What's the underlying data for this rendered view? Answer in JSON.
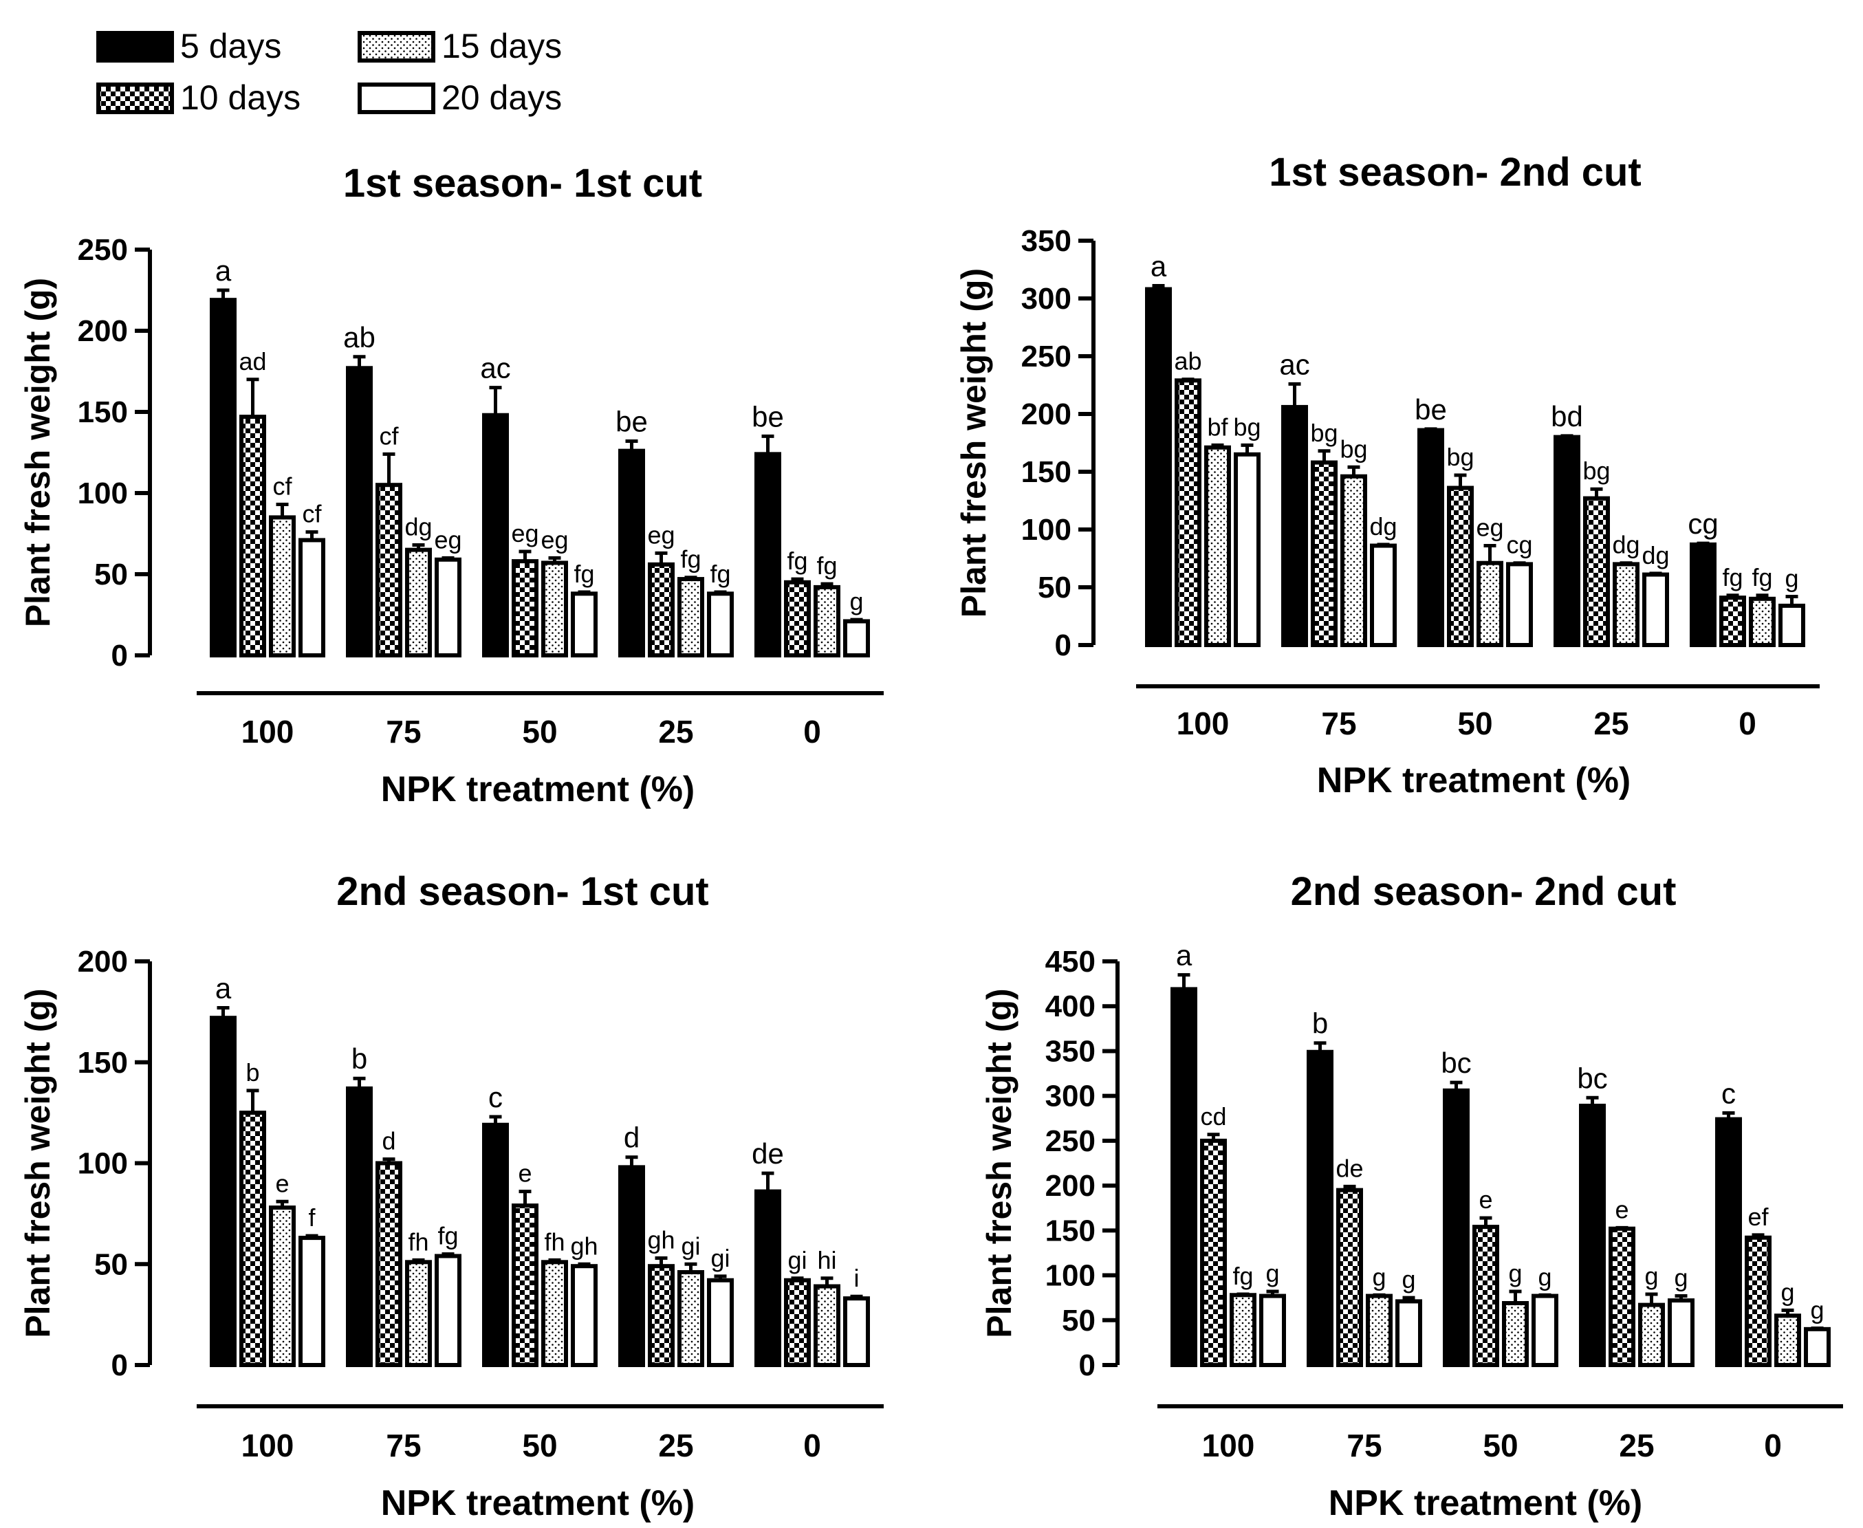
{
  "legend": {
    "position": "top-left",
    "entries": [
      {
        "label": "5 days",
        "pattern": "solid"
      },
      {
        "label": "10 days",
        "pattern": "checker"
      },
      {
        "label": "15 days",
        "pattern": "dots"
      },
      {
        "label": "20 days",
        "pattern": "open"
      }
    ]
  },
  "colors": {
    "ink": "#000000",
    "background": "#ffffff"
  },
  "chart_data": [
    {
      "type": "bar",
      "title": "1st season- 1st cut",
      "xlabel": "NPK treatment (%)",
      "ylabel": "Plant fresh weight (g)",
      "ylim": [
        0,
        250
      ],
      "yticks": [
        "0",
        "50",
        "100",
        "150",
        "200",
        "250"
      ],
      "categories": [
        "100",
        "75",
        "50",
        "25",
        "0"
      ],
      "series": [
        {
          "name": "5 days",
          "values": [
            219,
            177,
            148,
            126,
            124
          ],
          "errors": [
            6,
            7,
            17,
            6,
            11
          ],
          "letters": [
            "a",
            "ab",
            "ac",
            "be",
            "be"
          ]
        },
        {
          "name": "10 days",
          "values": [
            147,
            105,
            58,
            56,
            45
          ],
          "errors": [
            23,
            19,
            6,
            7,
            2
          ],
          "letters": [
            "ad",
            "cf",
            "eg",
            "eg",
            "fg"
          ]
        },
        {
          "name": "15 days",
          "values": [
            85,
            65,
            57,
            47,
            42
          ],
          "errors": [
            8,
            3,
            3,
            1,
            2
          ],
          "letters": [
            "cf",
            "dg",
            "eg",
            "fg",
            "fg"
          ]
        },
        {
          "name": "20 days",
          "values": [
            71,
            59,
            38,
            38,
            21
          ],
          "errors": [
            5,
            1,
            1,
            1,
            1
          ],
          "letters": [
            "cf",
            "eg",
            "fg",
            "fg",
            "g"
          ]
        }
      ]
    },
    {
      "type": "bar",
      "title": "1st season- 2nd cut",
      "xlabel": "NPK treatment (%)",
      "ylabel": "Plant fresh weight (g)",
      "ylim": [
        0,
        350
      ],
      "yticks": [
        "0",
        "50",
        "100",
        "150",
        "200",
        "250",
        "300",
        "350"
      ],
      "categories": [
        "100",
        "75",
        "50",
        "25",
        "0"
      ],
      "series": [
        {
          "name": "5 days",
          "values": [
            308,
            206,
            186,
            180,
            87
          ],
          "errors": [
            3,
            20,
            1,
            1,
            1
          ],
          "letters": [
            "a",
            "ac",
            "be",
            "bd",
            "cg"
          ]
        },
        {
          "name": "10 days",
          "values": [
            229,
            158,
            136,
            127,
            41
          ],
          "errors": [
            1,
            10,
            11,
            8,
            2
          ],
          "letters": [
            "ab",
            "bg",
            "bg",
            "bg",
            "fg"
          ]
        },
        {
          "name": "15 days",
          "values": [
            171,
            146,
            71,
            70,
            40
          ],
          "errors": [
            2,
            8,
            15,
            1,
            3
          ],
          "letters": [
            "bf",
            "bg",
            "eg",
            "dg",
            "fg"
          ]
        },
        {
          "name": "20 days",
          "values": [
            165,
            86,
            70,
            61,
            34
          ],
          "errors": [
            8,
            1,
            1,
            1,
            8
          ],
          "letters": [
            "bg",
            "dg",
            "cg",
            "dg",
            "g"
          ]
        }
      ]
    },
    {
      "type": "bar",
      "title": "2nd season- 1st cut",
      "xlabel": "NPK treatment (%)",
      "ylabel": "Plant fresh weight (g)",
      "ylim": [
        0,
        200
      ],
      "yticks": [
        "0",
        "50",
        "100",
        "150",
        "200"
      ],
      "categories": [
        "100",
        "75",
        "50",
        "25",
        "0"
      ],
      "series": [
        {
          "name": "5 days",
          "values": [
            172,
            137,
            119,
            98,
            86
          ],
          "errors": [
            5,
            5,
            4,
            5,
            9
          ],
          "letters": [
            "a",
            "b",
            "c",
            "d",
            "de"
          ]
        },
        {
          "name": "10 days",
          "values": [
            125,
            100,
            79,
            49,
            42
          ],
          "errors": [
            11,
            2,
            7,
            4,
            1
          ],
          "letters": [
            "b",
            "d",
            "e",
            "gh",
            "gi"
          ]
        },
        {
          "name": "15 days",
          "values": [
            78,
            51,
            51,
            46,
            39
          ],
          "errors": [
            3,
            1,
            1,
            4,
            4
          ],
          "letters": [
            "e",
            "fh",
            "fh",
            "gi",
            "hi"
          ]
        },
        {
          "name": "20 days",
          "values": [
            63,
            54,
            49,
            42,
            33
          ],
          "errors": [
            1,
            1,
            1,
            2,
            1
          ],
          "letters": [
            "f",
            "fg",
            "gh",
            "gi",
            "i"
          ]
        }
      ]
    },
    {
      "type": "bar",
      "title": "2nd season- 2nd cut",
      "xlabel": "NPK treatment (%)",
      "ylabel": "Plant fresh weight (g)",
      "ylim": [
        0,
        450
      ],
      "yticks": [
        "0",
        "50",
        "100",
        "150",
        "200",
        "250",
        "300",
        "350",
        "400",
        "450"
      ],
      "categories": [
        "100",
        "75",
        "50",
        "25",
        "0"
      ],
      "series": [
        {
          "name": "5 days",
          "values": [
            419,
            349,
            306,
            289,
            274
          ],
          "errors": [
            16,
            10,
            9,
            9,
            7
          ],
          "letters": [
            "a",
            "b",
            "bc",
            "bc",
            "c"
          ]
        },
        {
          "name": "10 days",
          "values": [
            250,
            195,
            154,
            152,
            142
          ],
          "errors": [
            7,
            4,
            10,
            1,
            3
          ],
          "letters": [
            "cd",
            "de",
            "e",
            "e",
            "ef"
          ]
        },
        {
          "name": "15 days",
          "values": [
            78,
            77,
            69,
            67,
            55
          ],
          "errors": [
            1,
            1,
            13,
            12,
            6
          ],
          "letters": [
            "fg",
            "g",
            "g",
            "g",
            "g"
          ]
        },
        {
          "name": "20 days",
          "values": [
            77,
            71,
            77,
            72,
            40
          ],
          "errors": [
            5,
            4,
            1,
            5,
            1
          ],
          "letters": [
            "g",
            "g",
            "g",
            "g",
            "g"
          ]
        }
      ]
    }
  ]
}
